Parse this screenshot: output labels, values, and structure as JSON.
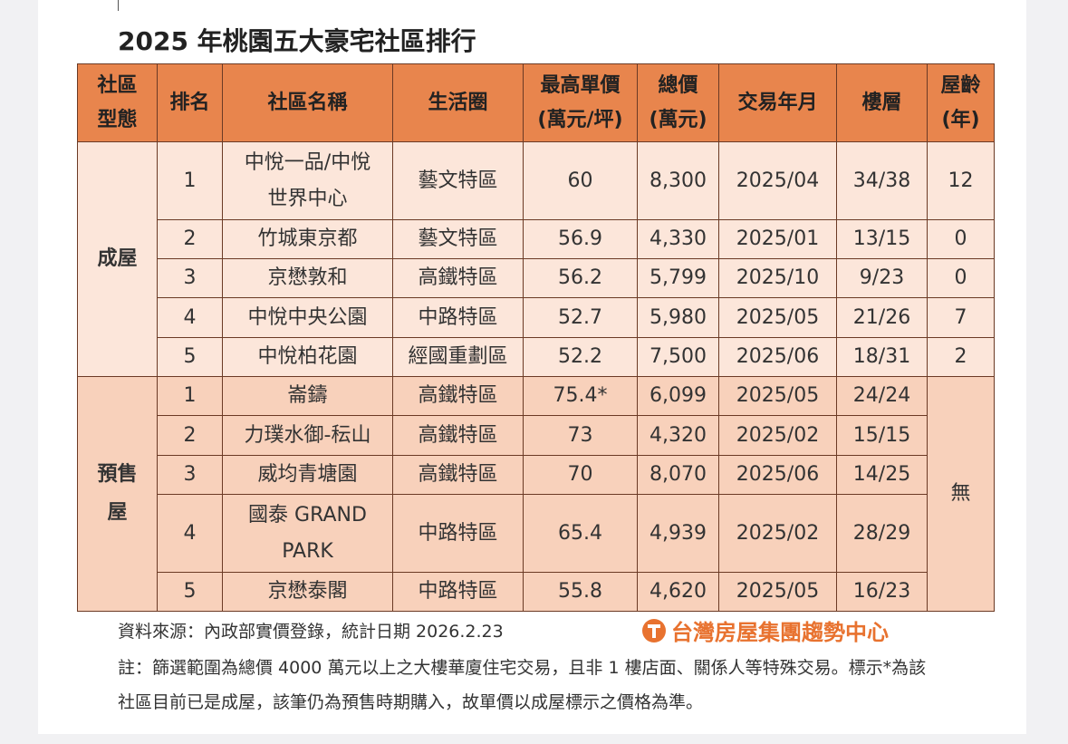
{
  "title": "2025 年桃園五大豪宅社區排行",
  "table": {
    "header": [
      "社區\n型態",
      "排名",
      "社區名稱",
      "生活圈",
      "最高單價\n(萬元/坪)",
      "總價\n(萬元)",
      "交易年月",
      "樓層",
      "屋齡\n(年)"
    ],
    "groups": [
      {
        "label": "成屋",
        "rows": [
          [
            "1",
            "中悅一品/中悅\n世界中心",
            "藝文特區",
            "60",
            "8,300",
            "2025/04",
            "34/38",
            "12"
          ],
          [
            "2",
            "竹城東京都",
            "藝文特區",
            "56.9",
            "4,330",
            "2025/01",
            "13/15",
            "0"
          ],
          [
            "3",
            "京懋敦和",
            "高鐵特區",
            "56.2",
            "5,799",
            "2025/10",
            "9/23",
            "0"
          ],
          [
            "4",
            "中悅中央公園",
            "中路特區",
            "52.7",
            "5,980",
            "2025/05",
            "21/26",
            "7"
          ],
          [
            "5",
            "中悅柏花園",
            "經國重劃區",
            "52.2",
            "7,500",
            "2025/06",
            "18/31",
            "2"
          ]
        ]
      },
      {
        "label": "預售\n屋",
        "age": "無",
        "rows": [
          [
            "1",
            "崙鑄",
            "高鐵特區",
            "75.4*",
            "6,099",
            "2025/05",
            "24/24"
          ],
          [
            "2",
            "力璞水御-秐山",
            "高鐵特區",
            "73",
            "4,320",
            "2025/02",
            "15/15"
          ],
          [
            "3",
            "威均青塘園",
            "高鐵特區",
            "70",
            "8,070",
            "2025/06",
            "14/25"
          ],
          [
            "4",
            "國泰 GRAND\nPARK",
            "中路特區",
            "65.4",
            "4,939",
            "2025/02",
            "28/29"
          ],
          [
            "5",
            "京懋泰閣",
            "中路特區",
            "55.8",
            "4,620",
            "2025/05",
            "16/23"
          ]
        ]
      }
    ]
  },
  "footer": {
    "source": "資料來源：內政部實價登錄，統計日期 2026.2.23",
    "brand": "台灣房屋集團趨勢中心",
    "note": "註：篩選範圍為總價 4000 萬元以上之大樓華廈住宅交易，且非 1 樓店面、關係人等特殊交易。標示*為該社區目前已是成屋，該筆仍為預售時期購入，故單價以成屋標示之價格為準。"
  }
}
